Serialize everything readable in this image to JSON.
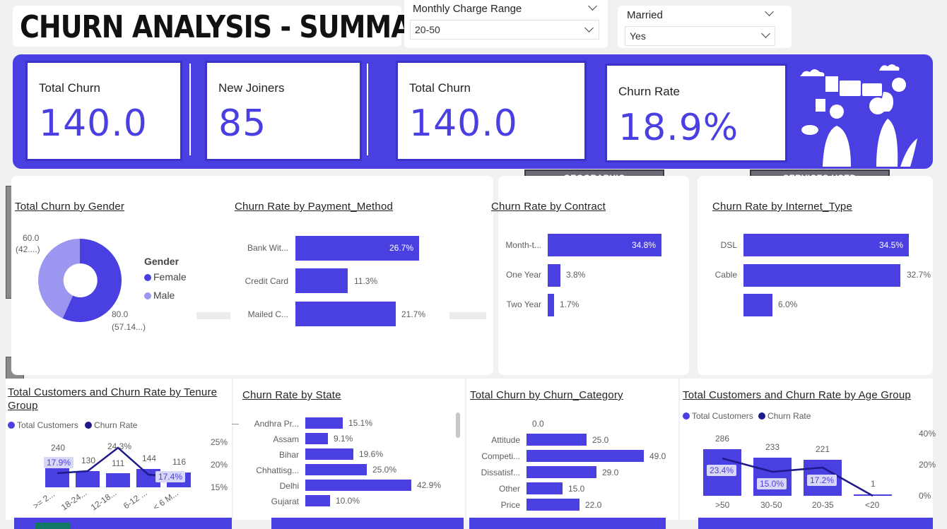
{
  "header": {
    "title": "CHURN ANALYSIS - SUMMARY"
  },
  "slicers": {
    "charge": {
      "label": "Monthly Charge Range",
      "value": "20-50"
    },
    "married": {
      "label": "Married",
      "value": "Yes"
    }
  },
  "kpis": [
    {
      "label": "Total Churn",
      "value": "140.0"
    },
    {
      "label": "New Joiners",
      "value": "85"
    },
    {
      "label": "Total Churn",
      "value": "140.0"
    },
    {
      "label": "Churn Rate",
      "value": "18.9%"
    }
  ],
  "sections": {
    "geographic": "GEOGRAPHIC",
    "services": "SERVICES USED"
  },
  "colors": {
    "accent": "#4a3fe0",
    "light_accent": "#9b96ef",
    "dark_line": "#1e1a8c"
  },
  "gender": {
    "title": "Total Churn by Gender",
    "legend_title": "Gender",
    "female_label": "Female",
    "male_label": "Male",
    "male_val": "60.0",
    "male_pct": "(42....)",
    "female_val": "80.0",
    "female_pct": "(57.14...)"
  },
  "payment": {
    "title": "Churn Rate by Payment_Method",
    "rows": [
      {
        "label": "Bank Wit...",
        "value": "26.7%"
      },
      {
        "label": "Credit Card",
        "value": "11.3%"
      },
      {
        "label": "Mailed C...",
        "value": "21.7%"
      }
    ]
  },
  "contract": {
    "title": "Churn Rate by Contract",
    "rows": [
      {
        "label": "Month-t...",
        "value": "34.8%"
      },
      {
        "label": "One Year",
        "value": "3.8%"
      },
      {
        "label": "Two Year",
        "value": "1.7%"
      }
    ]
  },
  "internet": {
    "title": "Churn Rate by Internet_Type",
    "rows": [
      {
        "label": "DSL",
        "value": "34.5%"
      },
      {
        "label": "Cable",
        "value": "32.7%"
      },
      {
        "label": "",
        "value": "6.0%"
      }
    ]
  },
  "tenure": {
    "title": "Total Customers and Churn Rate by Tenure Group",
    "legend_customers": "Total Customers",
    "legend_rate": "Churn Rate",
    "axis": [
      "25%",
      "20%",
      "15%"
    ],
    "cats": [
      ">= 2...",
      "18-24...",
      "12-18...",
      "6-12 ...",
      "< 6 M..."
    ],
    "counts": [
      "240",
      "130",
      "111",
      "144",
      "116"
    ],
    "rates": [
      "17.9%",
      "",
      "24.3%",
      "",
      "17.4%"
    ]
  },
  "state": {
    "title": "Churn Rate by State",
    "rows": [
      {
        "label": "Andhra Pr...",
        "value": "15.1%"
      },
      {
        "label": "Assam",
        "value": "9.1%"
      },
      {
        "label": "Bihar",
        "value": "19.6%"
      },
      {
        "label": "Chhattisg...",
        "value": "25.0%"
      },
      {
        "label": "Delhi",
        "value": "42.9%"
      },
      {
        "label": "Gujarat",
        "value": "10.0%"
      }
    ]
  },
  "category": {
    "title": "Total Churn by Churn_Category",
    "rows": [
      {
        "label": "",
        "value": "0.0"
      },
      {
        "label": "Attitude",
        "value": "25.0"
      },
      {
        "label": "Competi...",
        "value": "49.0"
      },
      {
        "label": "Dissatisf...",
        "value": "29.0"
      },
      {
        "label": "Other",
        "value": "15.0"
      },
      {
        "label": "Price",
        "value": "22.0"
      }
    ]
  },
  "age": {
    "title": "Total Customers and Churn Rate by Age Group",
    "legend_customers": "Total Customers",
    "legend_rate": "Churn Rate",
    "axis": [
      "40%",
      "20%",
      "0%"
    ],
    "cats": [
      ">50",
      "30-50",
      "20-35",
      "<20"
    ],
    "counts": [
      "286",
      "233",
      "221",
      "1"
    ],
    "rates": [
      "23.4%",
      "15.0%",
      "17.2%",
      ""
    ]
  }
}
